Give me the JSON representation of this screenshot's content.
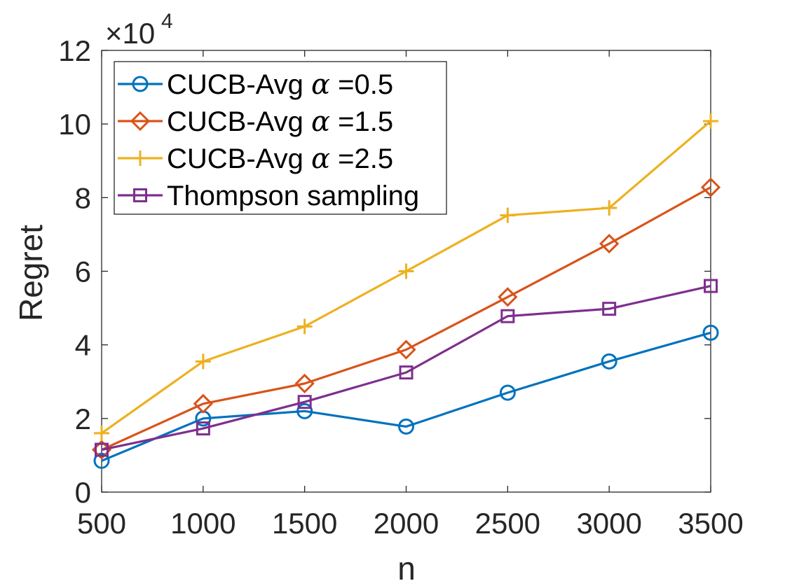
{
  "chart_data": {
    "type": "line",
    "title": "",
    "xlabel": "n",
    "ylabel": "Regret",
    "x": [
      500,
      1000,
      1500,
      2000,
      2500,
      3000,
      3500
    ],
    "xlim": [
      500,
      3500
    ],
    "ylim": [
      0,
      12
    ],
    "y_multiplier": "×10",
    "y_exponent": "4",
    "x_ticks": [
      "500",
      "1000",
      "1500",
      "2000",
      "2500",
      "3000",
      "3500"
    ],
    "y_ticks": [
      "0",
      "2",
      "4",
      "6",
      "8",
      "10",
      "12"
    ],
    "y_tick_values": [
      0,
      2,
      4,
      6,
      8,
      10,
      12
    ],
    "grid": false,
    "legend_position": "top-left",
    "series": [
      {
        "name": "CUCB-Avg α =0.5",
        "label_prefix": "CUCB-Avg ",
        "label_symbol": "α",
        "label_suffix": " =0.5",
        "color": "#0072BD",
        "marker": "circle",
        "values": [
          0.85,
          2.0,
          2.2,
          1.78,
          2.7,
          3.55,
          4.33
        ]
      },
      {
        "name": "CUCB-Avg α =1.5",
        "label_prefix": "CUCB-Avg ",
        "label_symbol": "α",
        "label_suffix": " =1.5",
        "color": "#D95319",
        "marker": "diamond",
        "values": [
          1.15,
          2.4,
          2.95,
          3.87,
          5.3,
          6.75,
          8.28
        ]
      },
      {
        "name": "CUCB-Avg α =2.5",
        "label_prefix": "CUCB-Avg ",
        "label_symbol": "α",
        "label_suffix": " =2.5",
        "color": "#EDB120",
        "marker": "plus",
        "values": [
          1.6,
          3.55,
          4.5,
          6.0,
          7.52,
          7.72,
          10.08
        ]
      },
      {
        "name": "Thompson sampling",
        "label_prefix": "Thompson sampling",
        "label_symbol": "",
        "label_suffix": "",
        "color": "#7E2F8E",
        "marker": "square",
        "values": [
          1.15,
          1.73,
          2.45,
          3.25,
          4.78,
          4.98,
          5.6
        ]
      }
    ]
  }
}
